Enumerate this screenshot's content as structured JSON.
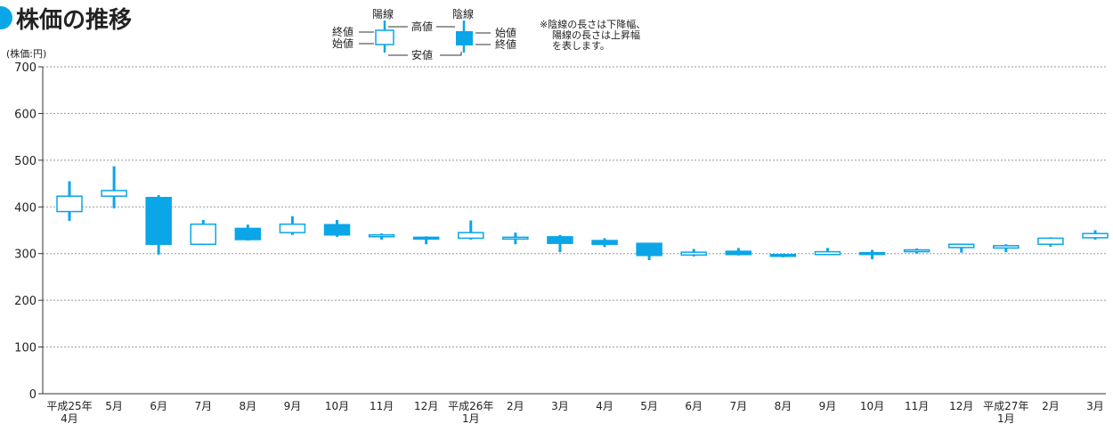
{
  "title": "株価の推移",
  "unit_label": "(株価:円)",
  "note": [
    "※陰線の長さは下降幅、",
    "陽線の長さは上昇幅",
    "を表します。"
  ],
  "legend": {
    "yang_label": "陽線",
    "yin_label": "陰線",
    "high_label": "高値",
    "low_label": "安値",
    "close_label": "終値",
    "open_label": "始値",
    "yin_open_label": "始値",
    "yin_close_label": "終値"
  },
  "colors": {
    "accent": "#0aa6e8",
    "grid": "#999999",
    "axis": "#333333"
  },
  "chart_data": {
    "type": "candlestick",
    "title": "株価の推移",
    "ylabel": "(株価:円)",
    "ylim": [
      0,
      700
    ],
    "yticks": [
      0,
      100,
      200,
      300,
      400,
      500,
      600,
      700
    ],
    "grid": true,
    "categories": [
      [
        "平成25年",
        "4月"
      ],
      [
        "5月"
      ],
      [
        "6月"
      ],
      [
        "7月"
      ],
      [
        "8月"
      ],
      [
        "9月"
      ],
      [
        "10月"
      ],
      [
        "11月"
      ],
      [
        "12月"
      ],
      [
        "平成26年",
        "1月"
      ],
      [
        "2月"
      ],
      [
        "3月"
      ],
      [
        "4月"
      ],
      [
        "5月"
      ],
      [
        "6月"
      ],
      [
        "7月"
      ],
      [
        "8月"
      ],
      [
        "9月"
      ],
      [
        "10月"
      ],
      [
        "11月"
      ],
      [
        "12月"
      ],
      [
        "平成27年",
        "1月"
      ],
      [
        "2月"
      ],
      [
        "3月"
      ]
    ],
    "candles": [
      {
        "open": 390,
        "close": 423,
        "high": 455,
        "low": 370
      },
      {
        "open": 423,
        "close": 435,
        "high": 487,
        "low": 397
      },
      {
        "open": 420,
        "close": 320,
        "high": 425,
        "low": 298
      },
      {
        "open": 320,
        "close": 363,
        "high": 372,
        "low": 318
      },
      {
        "open": 354,
        "close": 330,
        "high": 362,
        "low": 328
      },
      {
        "open": 345,
        "close": 363,
        "high": 380,
        "low": 340
      },
      {
        "open": 362,
        "close": 340,
        "high": 372,
        "low": 336
      },
      {
        "open": 337,
        "close": 340,
        "high": 343,
        "low": 330
      },
      {
        "open": 335,
        "close": 332,
        "high": 337,
        "low": 320
      },
      {
        "open": 333,
        "close": 345,
        "high": 371,
        "low": 330
      },
      {
        "open": 333,
        "close": 335,
        "high": 345,
        "low": 320
      },
      {
        "open": 336,
        "close": 322,
        "high": 340,
        "low": 303
      },
      {
        "open": 328,
        "close": 320,
        "high": 333,
        "low": 314
      },
      {
        "open": 322,
        "close": 296,
        "high": 323,
        "low": 286
      },
      {
        "open": 297,
        "close": 303,
        "high": 310,
        "low": 294
      },
      {
        "open": 305,
        "close": 298,
        "high": 312,
        "low": 296
      },
      {
        "open": 298,
        "close": 296,
        "high": 300,
        "low": 292
      },
      {
        "open": 298,
        "close": 304,
        "high": 312,
        "low": 297
      },
      {
        "open": 302,
        "close": 301,
        "high": 308,
        "low": 288
      },
      {
        "open": 305,
        "close": 308,
        "high": 311,
        "low": 300
      },
      {
        "open": 313,
        "close": 320,
        "high": 321,
        "low": 302
      },
      {
        "open": 312,
        "close": 317,
        "high": 320,
        "low": 303
      },
      {
        "open": 320,
        "close": 333,
        "high": 335,
        "low": 315
      },
      {
        "open": 334,
        "close": 343,
        "high": 350,
        "low": 330
      }
    ]
  }
}
